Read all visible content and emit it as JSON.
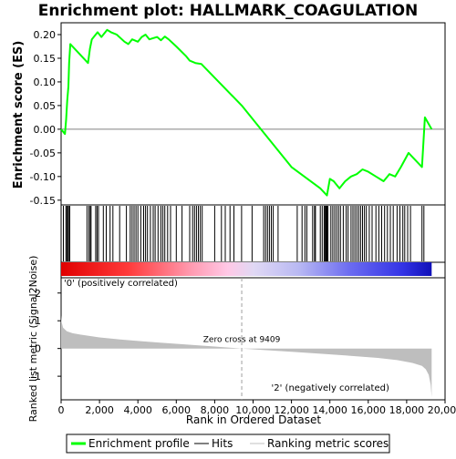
{
  "chart_data": {
    "type": "line",
    "title": "Enrichment plot: HALLMARK_COAGULATION",
    "es_panel": {
      "ylabel": "Enrichment score (ES)",
      "ylim": [
        -0.16,
        0.225
      ],
      "yticks": [
        -0.15,
        -0.1,
        -0.05,
        0.0,
        0.05,
        0.1,
        0.15,
        0.2
      ],
      "ytick_labels": [
        "-0.15",
        "-0.10",
        "-0.05",
        "0.00",
        "0.05",
        "0.10",
        "0.15",
        "0.20"
      ],
      "series": [
        {
          "name": "Enrichment profile",
          "color": "#00ff00",
          "x": [
            0,
            200,
            260,
            320,
            380,
            420,
            480,
            1400,
            1500,
            1600,
            1900,
            2100,
            2400,
            2600,
            2900,
            3300,
            3500,
            3700,
            4000,
            4200,
            4400,
            4600,
            5000,
            5200,
            5400,
            5600,
            6000,
            6500,
            6700,
            7000,
            7300,
            9409,
            12000,
            13500,
            13850,
            14000,
            14200,
            14500,
            14800,
            15100,
            15400,
            15700,
            16000,
            16400,
            16800,
            17100,
            17400,
            17700,
            17900,
            18100,
            18800,
            18950,
            19300
          ],
          "y": [
            0.0,
            -0.01,
            0.02,
            0.06,
            0.09,
            0.14,
            0.18,
            0.14,
            0.17,
            0.19,
            0.205,
            0.195,
            0.21,
            0.205,
            0.2,
            0.185,
            0.18,
            0.19,
            0.185,
            0.195,
            0.2,
            0.19,
            0.195,
            0.188,
            0.196,
            0.19,
            0.175,
            0.155,
            0.145,
            0.14,
            0.138,
            0.05,
            -0.08,
            -0.125,
            -0.14,
            -0.105,
            -0.11,
            -0.125,
            -0.11,
            -0.1,
            -0.095,
            -0.085,
            -0.09,
            -0.1,
            -0.11,
            -0.095,
            -0.1,
            -0.08,
            -0.065,
            -0.05,
            -0.08,
            0.025,
            0.0
          ]
        }
      ]
    },
    "hits": [
      120,
      250,
      300,
      350,
      420,
      450,
      1350,
      1450,
      1520,
      1560,
      1800,
      1870,
      1950,
      2200,
      2350,
      2550,
      2700,
      3050,
      3400,
      3600,
      3700,
      3800,
      3900,
      4000,
      4150,
      4300,
      4400,
      4500,
      4650,
      4800,
      4900,
      5050,
      5200,
      5300,
      5400,
      5550,
      5700,
      6000,
      6300,
      6700,
      6850,
      6950,
      7050,
      7150,
      7250,
      7350,
      8000,
      8350,
      8550,
      8800,
      9000,
      9400,
      9950,
      10550,
      10650,
      10750,
      10850,
      10950,
      11050,
      11300,
      12300,
      12550,
      12700,
      12800,
      13100,
      13200,
      13250,
      13500,
      13600,
      13700,
      13750,
      13800,
      13850,
      13900,
      14050,
      14150,
      14250,
      14350,
      14450,
      14550,
      14700,
      14850,
      14950,
      15100,
      15200,
      15300,
      15400,
      15500,
      15600,
      15700,
      15800,
      15900,
      16050,
      16200,
      16400,
      16550,
      16700,
      16850,
      17000,
      17150,
      17300,
      17500,
      17650,
      17800,
      17900,
      18050,
      18200,
      18800,
      18900
    ],
    "rank_panel": {
      "ylabel": "Ranked list metric (Signal2Noise)",
      "ylim": [
        -1.85,
        2.55
      ],
      "yticks": [
        -1,
        0,
        1,
        2
      ],
      "ytick_labels": [
        "-1",
        "0",
        "1",
        "2"
      ],
      "metric_x": [
        0,
        30,
        100,
        300,
        600,
        1000,
        2000,
        3000,
        4000,
        5000,
        6000,
        7000,
        8000,
        9409,
        10500,
        12000,
        13500,
        15000,
        16500,
        17500,
        18300,
        18800,
        19000,
        19150,
        19250,
        19300
      ],
      "metric_y": [
        1.2,
        0.95,
        0.75,
        0.62,
        0.55,
        0.5,
        0.4,
        0.33,
        0.27,
        0.22,
        0.17,
        0.12,
        0.07,
        0.0,
        -0.05,
        -0.12,
        -0.19,
        -0.26,
        -0.34,
        -0.42,
        -0.52,
        -0.63,
        -0.75,
        -0.95,
        -1.3,
        -1.75
      ],
      "zero_cross_label": "Zero cross at 9409",
      "pos_label": "'0' (positively correlated)",
      "neg_label": "'2' (negatively correlated)"
    },
    "zero_cross": 9409,
    "xlabel": "Rank in Ordered Dataset",
    "xlim": [
      0,
      20000
    ],
    "xticks": [
      0,
      2000,
      4000,
      6000,
      8000,
      10000,
      12000,
      14000,
      16000,
      18000,
      20000
    ],
    "xtick_labels": [
      "0",
      "2,000",
      "4,000",
      "6,000",
      "8,000",
      "10,000",
      "12,000",
      "14,000",
      "16,000",
      "18,000",
      "20,000"
    ],
    "n_genes": 19300,
    "legend": {
      "placement": "bottom",
      "items": [
        {
          "label": "Enrichment profile",
          "color": "#00ff00"
        },
        {
          "label": "Hits",
          "color": "#000000"
        },
        {
          "label": "Ranking metric scores",
          "color": "#c0c0c0"
        }
      ]
    },
    "colors": {
      "pos": "#ff0000",
      "neg": "#0000ff",
      "profile": "#00ff00",
      "metric_fill": "#bebebe"
    }
  }
}
